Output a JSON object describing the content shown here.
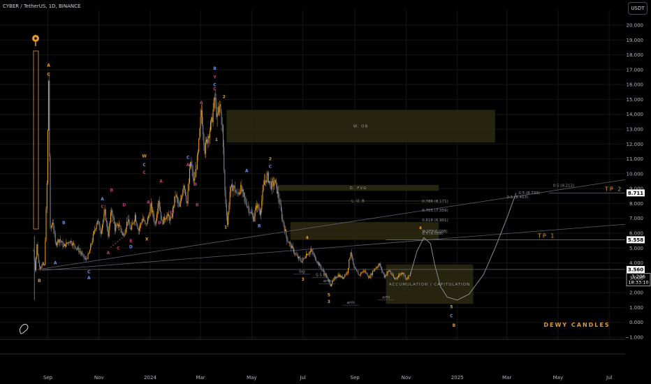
{
  "header": {
    "symbol": "CYBER / TetherUS, 1D, BINANCE",
    "currency": "USDT"
  },
  "colors": {
    "bg": "#000000",
    "grid": "#161616",
    "up": "#f5a623",
    "down": "#8a8e99",
    "gold": "#e09a35",
    "purple": "#c0397b",
    "blue": "#6c8fe6",
    "zone": "#2d2a11"
  },
  "chart_data": {
    "type": "candlestick",
    "ylim": [
      -1,
      20
    ],
    "y_ticks": [
      -1,
      0,
      1,
      2,
      3,
      4,
      5,
      6,
      7,
      8,
      9,
      10,
      11,
      12,
      13,
      14,
      15,
      16,
      17,
      18,
      19,
      20
    ],
    "y_tick_labels": [
      "−1.000",
      "0.000",
      "1.000",
      "2.000",
      "3.000",
      "4.000",
      "5.000",
      "6.000",
      "7.000",
      "8.000",
      "9.000",
      "10.000",
      "11.000",
      "12.000",
      "13.000",
      "14.000",
      "15.000",
      "16.000",
      "17.000",
      "18.000",
      "19.000",
      "20.000"
    ],
    "x_ticks": [
      {
        "label": "Sep",
        "date": "2023-09-01"
      },
      {
        "label": "Nov",
        "date": "2023-11-01"
      },
      {
        "label": "2024",
        "date": "2024-01-01"
      },
      {
        "label": "Mar",
        "date": "2024-03-01"
      },
      {
        "label": "May",
        "date": "2024-05-01"
      },
      {
        "label": "Jul",
        "date": "2024-07-01"
      },
      {
        "label": "Sep",
        "date": "2024-09-01"
      },
      {
        "label": "Nov",
        "date": "2024-11-01"
      },
      {
        "label": "2025",
        "date": "2025-01-01"
      },
      {
        "label": "Mar",
        "date": "2025-03-01"
      },
      {
        "label": "May",
        "date": "2025-05-01"
      },
      {
        "label": "Jul",
        "date": "2025-07-01"
      }
    ],
    "x_start": "2023-08-15",
    "x_end": "2025-07-20",
    "price_path": [
      [
        "2023-08-15",
        4.8
      ],
      [
        "2023-08-17",
        3.6
      ],
      [
        "2023-08-19",
        5.2
      ],
      [
        "2023-08-21",
        4.0
      ],
      [
        "2023-08-23",
        3.7
      ],
      [
        "2023-08-26",
        3.9
      ],
      [
        "2023-08-28",
        3.8
      ],
      [
        "2023-08-31",
        9.3
      ],
      [
        "2023-09-02",
        16.3
      ],
      [
        "2023-09-04",
        6.2
      ],
      [
        "2023-09-07",
        6.8
      ],
      [
        "2023-09-10",
        5.3
      ],
      [
        "2023-09-15",
        5.6
      ],
      [
        "2023-09-20",
        5.1
      ],
      [
        "2023-09-27",
        5.5
      ],
      [
        "2023-10-04",
        5.1
      ],
      [
        "2023-10-10",
        4.7
      ],
      [
        "2023-10-16",
        4.2
      ],
      [
        "2023-10-20",
        4.6
      ],
      [
        "2023-10-25",
        5.8
      ],
      [
        "2023-10-30",
        6.9
      ],
      [
        "2023-11-03",
        6.1
      ],
      [
        "2023-11-08",
        7.4
      ],
      [
        "2023-11-12",
        5.9
      ],
      [
        "2023-11-16",
        7.6
      ],
      [
        "2023-11-20",
        6.3
      ],
      [
        "2023-11-25",
        6.6
      ],
      [
        "2023-11-30",
        5.8
      ],
      [
        "2023-12-05",
        6.9
      ],
      [
        "2023-12-09",
        6.2
      ],
      [
        "2023-12-14",
        7.2
      ],
      [
        "2023-12-18",
        6.2
      ],
      [
        "2023-12-23",
        7.0
      ],
      [
        "2023-12-27",
        6.5
      ],
      [
        "2024-01-02",
        7.8
      ],
      [
        "2024-01-07",
        6.6
      ],
      [
        "2024-01-11",
        8.3
      ],
      [
        "2024-01-15",
        6.7
      ],
      [
        "2024-01-20",
        7.2
      ],
      [
        "2024-01-26",
        6.9
      ],
      [
        "2024-01-31",
        8.6
      ],
      [
        "2024-02-05",
        7.7
      ],
      [
        "2024-02-10",
        9.4
      ],
      [
        "2024-02-14",
        8.0
      ],
      [
        "2024-02-18",
        10.8
      ],
      [
        "2024-02-22",
        9.4
      ],
      [
        "2024-02-27",
        11.3
      ],
      [
        "2024-03-02",
        14.3
      ],
      [
        "2024-03-06",
        11.6
      ],
      [
        "2024-03-10",
        12.6
      ],
      [
        "2024-03-14",
        13.4
      ],
      [
        "2024-03-18",
        15.1
      ],
      [
        "2024-03-21",
        13.7
      ],
      [
        "2024-03-24",
        14.6
      ],
      [
        "2024-03-27",
        13.1
      ],
      [
        "2024-03-30",
        8.8
      ],
      [
        "2024-04-02",
        6.6
      ],
      [
        "2024-04-05",
        8.8
      ],
      [
        "2024-04-09",
        9.2
      ],
      [
        "2024-04-13",
        8.6
      ],
      [
        "2024-04-18",
        9.0
      ],
      [
        "2024-04-23",
        8.2
      ],
      [
        "2024-04-28",
        7.6
      ],
      [
        "2024-05-03",
        7.0
      ],
      [
        "2024-05-07",
        7.9
      ],
      [
        "2024-05-11",
        7.4
      ],
      [
        "2024-05-16",
        9.5
      ],
      [
        "2024-05-20",
        9.8
      ],
      [
        "2024-05-24",
        9.2
      ],
      [
        "2024-05-29",
        9.4
      ],
      [
        "2024-06-02",
        8.4
      ],
      [
        "2024-06-06",
        7.1
      ],
      [
        "2024-06-12",
        5.6
      ],
      [
        "2024-06-18",
        5.0
      ],
      [
        "2024-06-24",
        4.4
      ],
      [
        "2024-06-30",
        4.1
      ],
      [
        "2024-07-05",
        4.6
      ],
      [
        "2024-07-11",
        4.8
      ],
      [
        "2024-07-16",
        4.3
      ],
      [
        "2024-07-22",
        3.7
      ],
      [
        "2024-07-28",
        3.2
      ],
      [
        "2024-08-03",
        2.5
      ],
      [
        "2024-08-07",
        2.9
      ],
      [
        "2024-08-12",
        3.2
      ],
      [
        "2024-08-17",
        3.0
      ],
      [
        "2024-08-23",
        3.4
      ],
      [
        "2024-08-27",
        4.8
      ],
      [
        "2024-08-31",
        3.6
      ],
      [
        "2024-09-06",
        3.2
      ],
      [
        "2024-09-12",
        3.5
      ],
      [
        "2024-09-18",
        3.0
      ],
      [
        "2024-09-24",
        3.6
      ],
      [
        "2024-09-30",
        3.9
      ],
      [
        "2024-10-06",
        3.1
      ],
      [
        "2024-10-12",
        3.5
      ],
      [
        "2024-10-18",
        2.9
      ],
      [
        "2024-10-24",
        3.2
      ],
      [
        "2024-10-28",
        3.4
      ],
      [
        "2024-11-01",
        2.9
      ],
      [
        "2024-11-06",
        3.2
      ]
    ],
    "projection": [
      [
        "2024-11-06",
        3.2
      ],
      [
        "2024-11-14",
        4.8
      ],
      [
        "2024-11-22",
        5.7
      ],
      [
        "2024-11-30",
        5.3
      ],
      [
        "2024-12-05",
        3.9
      ],
      [
        "2024-12-12",
        2.4
      ],
      [
        "2024-12-20",
        1.7
      ],
      [
        "2025-01-01",
        1.5
      ],
      [
        "2025-01-15",
        1.9
      ],
      [
        "2025-02-01",
        3.2
      ],
      [
        "2025-02-15",
        5.0
      ],
      [
        "2025-03-01",
        7.0
      ],
      [
        "2025-03-12",
        8.7
      ]
    ],
    "zones": [
      {
        "label": "W. OB",
        "x0": "2024-04-01",
        "x1": "2025-02-15",
        "y0": 12.1,
        "y1": 14.3
      },
      {
        "label": "D. FVG",
        "x0": "2024-06-01",
        "x1": "2024-12-10",
        "y0": 8.85,
        "y1": 9.25
      },
      {
        "label": "L.Q.B",
        "x0": "2024-06-01",
        "x1": "2024-12-10",
        "y0": 8.15,
        "y1": 8.2
      },
      {
        "label": "",
        "x0": "2024-06-16",
        "x1": "2024-12-10",
        "y0": 5.55,
        "y1": 6.75
      },
      {
        "label": "ACCUMULATION / CAPITULATION",
        "x0": "2024-10-08",
        "x1": "2025-01-20",
        "y0": 1.25,
        "y1": 3.9
      }
    ],
    "levels": [
      {
        "label": "8.711",
        "y": 8.711,
        "label_name": "TP 2",
        "x0": "2025-04-20"
      },
      {
        "label": "5.558",
        "y": 5.558,
        "label_name": "TP 1",
        "x0": "2024-10-08"
      },
      {
        "label": "3.560",
        "y": 3.56,
        "label_name": "",
        "x0": "2023-08-20"
      }
    ],
    "current_price": {
      "value": "3.206",
      "time": "18:33:10"
    },
    "fib_levels": [
      {
        "label": "0.786 (8.171)",
        "y": 8.171,
        "x": "2024-11-20"
      },
      {
        "label": "0.705 (7.559)",
        "y": 7.559,
        "x": "2024-11-20"
      },
      {
        "label": "0.618 (6.901)",
        "y": 6.901,
        "x": "2024-11-20"
      },
      {
        "label": "0.5 (6.008)",
        "y": 6.008,
        "x": "2024-11-20"
      },
      {
        "label": "0.5 (8.453)",
        "y": 8.453,
        "x": "2025-03-01"
      },
      {
        "label": "0.5 (8.733)",
        "y": 8.733,
        "x": "2025-03-15"
      },
      {
        "label": "0.5 (9.212)",
        "y": 9.212,
        "x": "2025-04-25"
      },
      {
        "label": "W.SFP(6.008)",
        "y": 6.15,
        "x": "2024-11-20"
      }
    ],
    "trendlines": [
      {
        "x0": "2023-08-25",
        "y0": 3.6,
        "x1": "2025-07-20",
        "y1": 9.6
      },
      {
        "x0": "2023-08-25",
        "y0": 3.5,
        "x1": "2025-07-20",
        "y1": 6.6
      }
    ],
    "labels": [
      {
        "t": "A",
        "x": "2023-09-02",
        "y": 17.2,
        "c": "gold"
      },
      {
        "t": "C",
        "x": "2023-09-02",
        "y": 16.6,
        "c": "gold"
      },
      {
        "t": "B",
        "x": "2023-08-22",
        "y": 2.7,
        "c": "gold"
      },
      {
        "t": "A",
        "x": "2023-09-10",
        "y": 3.9,
        "c": "blue"
      },
      {
        "t": "B",
        "x": "2023-09-20",
        "y": 6.6,
        "c": "blue"
      },
      {
        "t": "C",
        "x": "2023-10-20",
        "y": 3.3,
        "c": "blue"
      },
      {
        "t": "A",
        "x": "2023-10-20",
        "y": 2.9,
        "c": "blue"
      },
      {
        "t": "A",
        "x": "2023-11-05",
        "y": 8.2,
        "c": "blue"
      },
      {
        "t": "C",
        "x": "2023-11-05",
        "y": 7.7,
        "c": "purple"
      },
      {
        "t": "B",
        "x": "2023-11-16",
        "y": 8.8,
        "c": "purple"
      },
      {
        "t": "D",
        "x": "2023-12-01",
        "y": 7.8,
        "c": "purple"
      },
      {
        "t": "A",
        "x": "2023-11-12",
        "y": 4.6,
        "c": "purple"
      },
      {
        "t": "C",
        "x": "2023-11-24",
        "y": 4.9,
        "c": "purple"
      },
      {
        "t": "E",
        "x": "2023-12-09",
        "y": 5.4,
        "c": "purple"
      },
      {
        "t": "D",
        "x": "2023-12-09",
        "y": 5.0,
        "c": "blue"
      },
      {
        "t": "W",
        "x": "2023-12-25",
        "y": 11.1,
        "c": "gold"
      },
      {
        "t": "C",
        "x": "2023-12-25",
        "y": 10.5,
        "c": "blue"
      },
      {
        "t": "C",
        "x": "2023-12-25",
        "y": 10.0,
        "c": "purple"
      },
      {
        "t": "A",
        "x": "2023-12-30",
        "y": 8.0,
        "c": "purple"
      },
      {
        "t": "X",
        "x": "2023-12-28",
        "y": 5.5,
        "c": "gold"
      },
      {
        "t": "B",
        "x": "2024-01-12",
        "y": 6.6,
        "c": "purple"
      },
      {
        "t": "A",
        "x": "2024-01-14",
        "y": 9.4,
        "c": "purple"
      },
      {
        "t": "C",
        "x": "2024-01-26",
        "y": 7.3,
        "c": "purple"
      },
      {
        "t": "A",
        "x": "2024-02-15",
        "y": 10.5,
        "c": "purple"
      },
      {
        "t": "C",
        "x": "2024-02-15",
        "y": 11.0,
        "c": "blue"
      },
      {
        "t": "A",
        "x": "2024-02-18",
        "y": 10.5,
        "c": "blue"
      },
      {
        "t": "B",
        "x": "2024-02-26",
        "y": 7.8,
        "c": "purple"
      },
      {
        "t": "B",
        "x": "2024-02-24",
        "y": 9.2,
        "c": "purple"
      },
      {
        "t": "A",
        "x": "2024-03-02",
        "y": 14.7,
        "c": "purple"
      },
      {
        "t": "B",
        "x": "2024-03-18",
        "y": 17.0,
        "c": "blue"
      },
      {
        "t": "Y",
        "x": "2024-03-18",
        "y": 16.4,
        "c": "purple"
      },
      {
        "t": "C",
        "x": "2024-03-18",
        "y": 15.9,
        "c": "blue"
      },
      {
        "t": "C",
        "x": "2024-03-18",
        "y": 15.6,
        "c": "purple"
      },
      {
        "t": "2",
        "x": "2024-03-29",
        "y": 15.1,
        "c": "gold"
      },
      {
        "t": "1",
        "x": "2024-03-20",
        "y": 12.2,
        "c": "gold"
      },
      {
        "t": "1",
        "x": "2024-03-31",
        "y": 6.3,
        "c": "gold"
      },
      {
        "t": "A",
        "x": "2024-04-25",
        "y": 10.1,
        "c": "blue"
      },
      {
        "t": "B",
        "x": "2024-05-10",
        "y": 6.4,
        "c": "blue"
      },
      {
        "t": "2",
        "x": "2024-05-23",
        "y": 10.9,
        "c": "gold"
      },
      {
        "t": "C",
        "x": "2024-05-23",
        "y": 10.4,
        "c": "blue"
      },
      {
        "t": "4",
        "x": "2024-07-06",
        "y": 5.6,
        "c": "gold"
      },
      {
        "t": "3",
        "x": "2024-07-01",
        "y": 2.8,
        "c": "gold"
      },
      {
        "t": "5",
        "x": "2024-08-01",
        "y": 1.75,
        "c": "gold"
      },
      {
        "t": "3",
        "x": "2024-08-01",
        "y": 1.3,
        "c": "gold"
      },
      {
        "t": "4",
        "x": "2024-11-18",
        "y": 6.25,
        "c": "gold"
      },
      {
        "t": "5",
        "x": "2024-12-25",
        "y": 0.95,
        "c": "gold"
      },
      {
        "t": "C",
        "x": "2024-12-25",
        "y": 0.35,
        "c": "blue"
      },
      {
        "t": "B",
        "x": "2024-12-28",
        "y": -0.3,
        "c": "gold"
      }
    ],
    "annotations": [
      {
        "t": "log",
        "x": "2024-06-30",
        "y": 3.35
      },
      {
        "t": "S.S.L",
        "x": "2024-07-22",
        "y": 3.1
      },
      {
        "t": "arth",
        "x": "2024-07-30",
        "y": 2.7
      },
      {
        "t": "arth",
        "x": "2024-08-27",
        "y": 1.25
      },
      {
        "t": "arth",
        "x": "2024-10-08",
        "y": 1.6
      }
    ],
    "watermark": "DEWY CANDLES"
  }
}
